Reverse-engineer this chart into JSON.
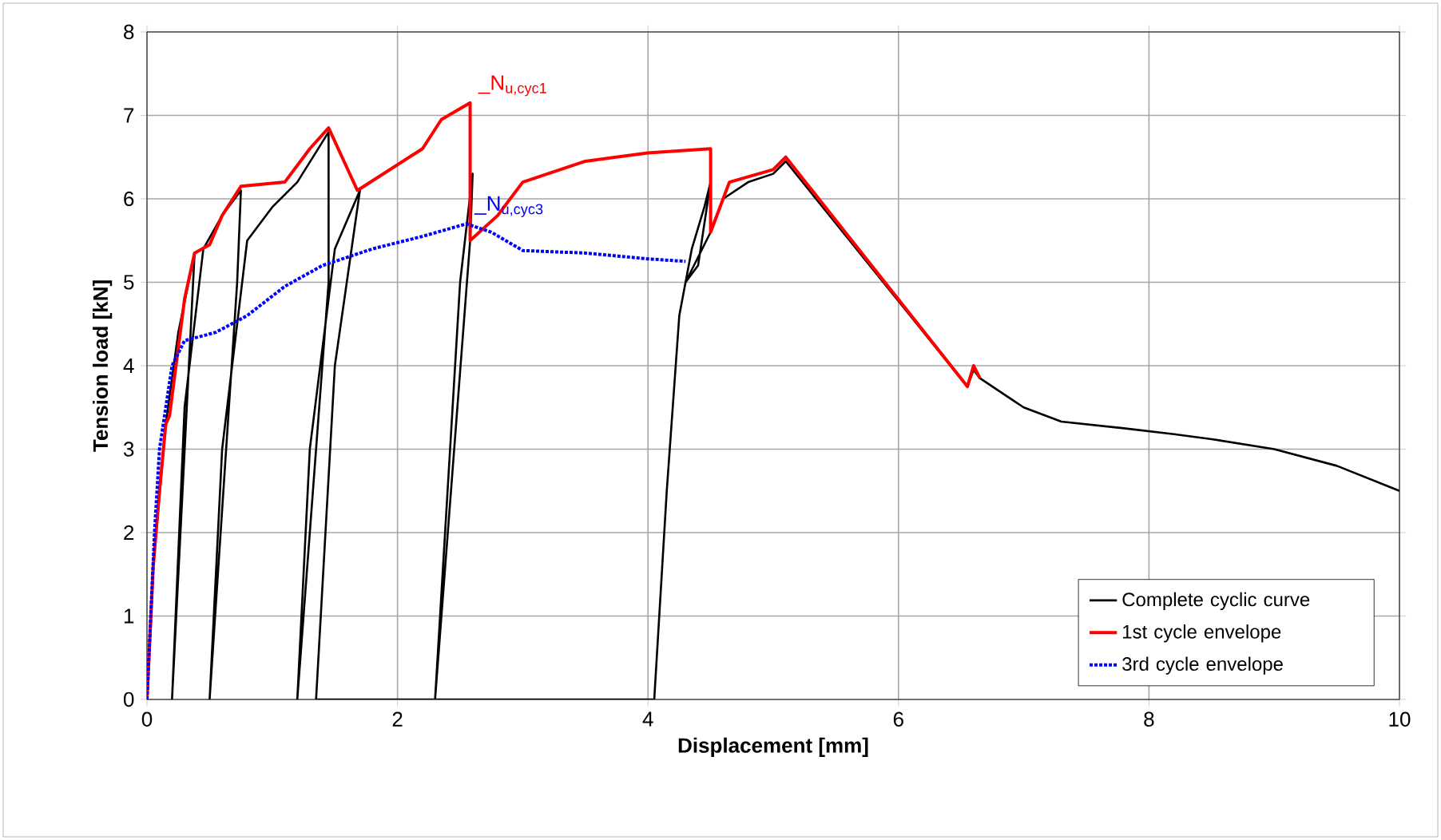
{
  "chart_data": {
    "type": "line",
    "xlabel": "Displacement  [mm]",
    "ylabel": "Tension load [kN]",
    "xlim": [
      0,
      10
    ],
    "ylim": [
      0,
      8
    ],
    "xticks": [
      0,
      2,
      4,
      6,
      8,
      10
    ],
    "yticks": [
      0,
      1,
      2,
      3,
      4,
      5,
      6,
      7,
      8
    ],
    "grid": true,
    "legend": "bottom right",
    "series": [
      {
        "name": "Complete cyclic curve",
        "color": "#000000",
        "line_style": "solid",
        "x": [
          0,
          0.05,
          0.15,
          0.25,
          0.38,
          0.2,
          0.3,
          0.45,
          0.6,
          0.75,
          0.72,
          0.5,
          0.6,
          0.8,
          1.0,
          1.2,
          1.45,
          1.45,
          1.2,
          1.3,
          1.5,
          1.7,
          1.5,
          1.35,
          2.3,
          2.4,
          2.5,
          2.6,
          2.58,
          2.3,
          4.05,
          4.15,
          4.25,
          4.35,
          4.45,
          4.5,
          4.4,
          4.3,
          4.5,
          4.6,
          4.8,
          5.0,
          5.1,
          6.55,
          6.6,
          6.65,
          6.8,
          7.0,
          7.3,
          7.8,
          8.2,
          8.5,
          9.0,
          9.5,
          10
        ],
        "values": [
          0,
          1.6,
          3.3,
          4.4,
          5.35,
          0,
          3.5,
          5.4,
          5.8,
          6.1,
          5.0,
          0,
          3.0,
          5.5,
          5.9,
          6.2,
          6.8,
          5.0,
          0,
          3.0,
          5.4,
          6.1,
          4.0,
          0,
          0,
          2.5,
          5.0,
          6.3,
          5.5,
          0,
          0,
          2.5,
          4.6,
          5.4,
          5.9,
          6.2,
          5.2,
          5.0,
          5.6,
          6.0,
          6.2,
          6.3,
          6.45,
          3.75,
          3.95,
          3.85,
          3.7,
          3.5,
          3.33,
          3.25,
          3.18,
          3.12,
          3.0,
          2.8,
          2.5
        ]
      },
      {
        "name": "1st cycle envelope",
        "color": "#ff0000",
        "line_style": "solid",
        "x": [
          0,
          0.05,
          0.1,
          0.15,
          0.18,
          0.3,
          0.38,
          0.5,
          0.6,
          0.75,
          1.1,
          1.3,
          1.45,
          1.68,
          2.2,
          2.35,
          2.58,
          2.58,
          2.8,
          3.0,
          3.5,
          4.0,
          4.5,
          4.5,
          4.65,
          5.0,
          5.1,
          6.55,
          6.6,
          6.65
        ],
        "values": [
          0,
          1.6,
          2.5,
          3.3,
          3.4,
          4.8,
          5.35,
          5.45,
          5.8,
          6.15,
          6.2,
          6.6,
          6.85,
          6.1,
          6.6,
          6.95,
          7.15,
          5.5,
          5.8,
          6.2,
          6.45,
          6.55,
          6.6,
          5.6,
          6.2,
          6.35,
          6.5,
          3.75,
          4.0,
          3.85
        ]
      },
      {
        "name": "3rd cycle envelope",
        "color": "#0000ff",
        "line_style": "dotted",
        "x": [
          0,
          0.03,
          0.06,
          0.1,
          0.2,
          0.3,
          0.55,
          0.8,
          1.1,
          1.4,
          1.8,
          2.2,
          2.55,
          2.75,
          3.0,
          3.5,
          4.0,
          4.3
        ],
        "values": [
          0,
          1,
          2,
          3,
          4,
          4.3,
          4.4,
          4.6,
          4.95,
          5.2,
          5.4,
          5.55,
          5.7,
          5.6,
          5.38,
          5.35,
          5.28,
          5.25
        ]
      }
    ],
    "annotations": [
      {
        "text": "_N$_{u,cyc1}$",
        "x": 2.58,
        "y": 7.15
      },
      {
        "text": "_N$_{u,cyc3}$",
        "x": 2.55,
        "y": 5.7
      }
    ]
  }
}
